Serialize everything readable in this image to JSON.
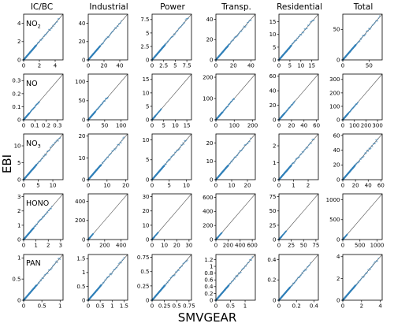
{
  "figure": {
    "xlabel": "SMVGEAR",
    "ylabel": "EBI",
    "columns": [
      "IC/BC",
      "Industrial",
      "Power",
      "Transp.",
      "Residential",
      "Total"
    ],
    "species": [
      {
        "name": "NO",
        "sub": "2"
      },
      {
        "name": "NO",
        "sub": ""
      },
      {
        "name": "NO",
        "sub": "3"
      },
      {
        "name": "HONO",
        "sub": ""
      },
      {
        "name": "PAN",
        "sub": ""
      }
    ],
    "colors": {
      "points": "#2f7fb8",
      "line": "#555555",
      "axes": "#000000"
    }
  },
  "chart_data": [
    {
      "type": "scatter",
      "row": "NO2",
      "column": "IC/BC",
      "xlim": [
        0,
        5
      ],
      "ylim": [
        0,
        5
      ],
      "xticks": [
        0,
        2,
        4
      ],
      "yticks": [
        0,
        2,
        4
      ],
      "xmax_data": 4.5,
      "ymax_data": 4.5,
      "identity_line": true
    },
    {
      "type": "scatter",
      "row": "NO2",
      "column": "Industrial",
      "xlim": [
        0,
        50
      ],
      "ylim": [
        0,
        50
      ],
      "xticks": [
        0,
        20,
        40
      ],
      "yticks": [
        0,
        20,
        40
      ],
      "xmax_data": 42,
      "ymax_data": 42,
      "identity_line": true
    },
    {
      "type": "scatter",
      "row": "NO2",
      "column": "Power",
      "xlim": [
        0,
        8.5
      ],
      "ylim": [
        0,
        8.5
      ],
      "xticks": [
        0.0,
        2.5,
        5.0,
        7.5
      ],
      "yticks": [
        0.0,
        2.5,
        5.0,
        7.5
      ],
      "xmax_data": 7.8,
      "ymax_data": 7.8,
      "identity_line": true
    },
    {
      "type": "scatter",
      "row": "NO2",
      "column": "Transp.",
      "xlim": [
        0,
        45
      ],
      "ylim": [
        0,
        45
      ],
      "xticks": [
        0,
        20,
        40
      ],
      "yticks": [
        0,
        20,
        40
      ],
      "xmax_data": 40,
      "ymax_data": 40,
      "identity_line": true
    },
    {
      "type": "scatter",
      "row": "NO2",
      "column": "Residential",
      "xlim": [
        0,
        18
      ],
      "ylim": [
        0,
        18
      ],
      "xticks": [
        0,
        5,
        10,
        15
      ],
      "yticks": [
        0,
        5,
        10,
        15
      ],
      "xmax_data": 16,
      "ymax_data": 16,
      "identity_line": true
    },
    {
      "type": "scatter",
      "row": "NO2",
      "column": "Total",
      "xlim": [
        0,
        75
      ],
      "ylim": [
        0,
        75
      ],
      "xticks": [
        0,
        50
      ],
      "yticks": [
        0,
        50
      ],
      "xmax_data": 70,
      "ymax_data": 70,
      "identity_line": true
    },
    {
      "type": "scatter",
      "row": "NO",
      "column": "IC/BC",
      "xlim": [
        0,
        0.35
      ],
      "ylim": [
        0,
        0.35
      ],
      "xticks": [
        0.0,
        0.1,
        0.2,
        0.3
      ],
      "yticks": [
        0.0,
        0.1,
        0.2,
        0.3
      ],
      "xmax_data": 0.14,
      "ymax_data": 0.14,
      "identity_line": true
    },
    {
      "type": "scatter",
      "row": "NO",
      "column": "Industrial",
      "xlim": [
        0,
        120
      ],
      "ylim": [
        0,
        120
      ],
      "xticks": [
        0,
        50,
        100
      ],
      "yticks": [
        0,
        50,
        100
      ],
      "xmax_data": 60,
      "ymax_data": 60,
      "identity_line": true
    },
    {
      "type": "scatter",
      "row": "NO",
      "column": "Power",
      "xlim": [
        0,
        17
      ],
      "ylim": [
        0,
        17
      ],
      "xticks": [
        0,
        5,
        10,
        15
      ],
      "yticks": [
        0,
        5,
        10,
        15
      ],
      "xmax_data": 4,
      "ymax_data": 4,
      "identity_line": true
    },
    {
      "type": "scatter",
      "row": "NO",
      "column": "Transp.",
      "xlim": [
        0,
        215
      ],
      "ylim": [
        0,
        215
      ],
      "xticks": [
        0,
        100,
        200
      ],
      "yticks": [
        0,
        100,
        200
      ],
      "xmax_data": 100,
      "ymax_data": 100,
      "identity_line": true
    },
    {
      "type": "scatter",
      "row": "NO",
      "column": "Residential",
      "xlim": [
        0,
        63
      ],
      "ylim": [
        0,
        63
      ],
      "xticks": [
        0,
        20,
        40,
        60
      ],
      "yticks": [
        0,
        20,
        40,
        60
      ],
      "xmax_data": 25,
      "ymax_data": 25,
      "identity_line": true
    },
    {
      "type": "scatter",
      "row": "NO",
      "column": "Total",
      "xlim": [
        0,
        340
      ],
      "ylim": [
        0,
        340
      ],
      "xticks": [
        0,
        100,
        200,
        300
      ],
      "yticks": [
        0,
        100,
        200,
        300
      ],
      "xmax_data": 130,
      "ymax_data": 130,
      "identity_line": true
    },
    {
      "type": "scatter",
      "row": "NO3",
      "column": "IC/BC",
      "xlim": [
        0,
        13.5
      ],
      "ylim": [
        0,
        13.5
      ],
      "xticks": [
        0,
        5,
        10
      ],
      "yticks": [
        0,
        5,
        10
      ],
      "xmax_data": 12.5,
      "ymax_data": 12.5,
      "identity_line": true
    },
    {
      "type": "scatter",
      "row": "NO3",
      "column": "Industrial",
      "xlim": [
        0,
        21
      ],
      "ylim": [
        0,
        21
      ],
      "xticks": [
        0,
        10,
        20
      ],
      "yticks": [
        0,
        10,
        20
      ],
      "xmax_data": 19,
      "ymax_data": 19,
      "identity_line": true
    },
    {
      "type": "scatter",
      "row": "NO3",
      "column": "Power",
      "xlim": [
        0,
        11.5
      ],
      "ylim": [
        0,
        11.5
      ],
      "xticks": [
        0,
        5,
        10
      ],
      "yticks": [
        0,
        5,
        10
      ],
      "xmax_data": 10,
      "ymax_data": 10,
      "identity_line": true
    },
    {
      "type": "scatter",
      "row": "NO3",
      "column": "Transp.",
      "xlim": [
        0,
        25
      ],
      "ylim": [
        0,
        25
      ],
      "xticks": [
        0,
        10,
        20
      ],
      "yticks": [
        0,
        10,
        20
      ],
      "xmax_data": 22,
      "ymax_data": 22,
      "identity_line": true
    },
    {
      "type": "scatter",
      "row": "NO3",
      "column": "Residential",
      "xlim": [
        0,
        2.7
      ],
      "ylim": [
        0,
        2.7
      ],
      "xticks": [
        0,
        1,
        2
      ],
      "yticks": [
        0,
        1,
        2
      ],
      "xmax_data": 2.4,
      "ymax_data": 2.4,
      "identity_line": true
    },
    {
      "type": "scatter",
      "row": "NO3",
      "column": "Total",
      "xlim": [
        0,
        62
      ],
      "ylim": [
        0,
        62
      ],
      "xticks": [
        0,
        20,
        40,
        60
      ],
      "yticks": [
        0,
        20,
        40,
        60
      ],
      "xmax_data": 55,
      "ymax_data": 55,
      "identity_line": true
    },
    {
      "type": "scatter",
      "row": "HONO",
      "column": "IC/BC",
      "xlim": [
        0,
        3.2
      ],
      "ylim": [
        0,
        3.2
      ],
      "xticks": [
        0,
        1,
        2,
        3
      ],
      "yticks": [
        0,
        1,
        2,
        3
      ],
      "xmax_data": 2.3,
      "ymax_data": 2.3,
      "identity_line": true
    },
    {
      "type": "scatter",
      "row": "HONO",
      "column": "Industrial",
      "xlim": [
        0,
        480
      ],
      "ylim": [
        0,
        480
      ],
      "xticks": [
        0,
        200,
        400
      ],
      "yticks": [
        0,
        200,
        400
      ],
      "xmax_data": 60,
      "ymax_data": 60,
      "identity_line": true
    },
    {
      "type": "scatter",
      "row": "HONO",
      "column": "Power",
      "xlim": [
        0,
        32
      ],
      "ylim": [
        0,
        32
      ],
      "xticks": [
        0,
        10,
        20,
        30
      ],
      "yticks": [
        0,
        10,
        20,
        30
      ],
      "xmax_data": 5,
      "ymax_data": 5,
      "identity_line": true
    },
    {
      "type": "scatter",
      "row": "HONO",
      "column": "Transp.",
      "xlim": [
        0,
        650
      ],
      "ylim": [
        0,
        650
      ],
      "xticks": [
        0,
        200,
        400,
        600
      ],
      "yticks": [
        0,
        200,
        400,
        600
      ],
      "xmax_data": 100,
      "ymax_data": 100,
      "identity_line": true
    },
    {
      "type": "scatter",
      "row": "HONO",
      "column": "Residential",
      "xlim": [
        0,
        80
      ],
      "ylim": [
        0,
        80
      ],
      "xticks": [
        0,
        25,
        50,
        75
      ],
      "yticks": [
        0,
        25,
        50,
        75
      ],
      "xmax_data": 15,
      "ymax_data": 15,
      "identity_line": true
    },
    {
      "type": "scatter",
      "row": "HONO",
      "column": "Total",
      "xlim": [
        0,
        1150
      ],
      "ylim": [
        0,
        1150
      ],
      "xticks": [
        0,
        500,
        1000
      ],
      "yticks": [
        0,
        500,
        1000
      ],
      "xmax_data": 130,
      "ymax_data": 130,
      "identity_line": true
    },
    {
      "type": "scatter",
      "row": "PAN",
      "column": "IC/BC",
      "xlim": [
        0,
        1.08
      ],
      "ylim": [
        0,
        1.08
      ],
      "xticks": [
        0.0,
        0.5,
        1.0
      ],
      "yticks": [
        0.0,
        0.5,
        1.0
      ],
      "xmax_data": 1.0,
      "ymax_data": 1.0,
      "identity_line": true
    },
    {
      "type": "scatter",
      "row": "PAN",
      "column": "Industrial",
      "xlim": [
        0,
        1.65
      ],
      "ylim": [
        0,
        1.65
      ],
      "xticks": [
        0.0,
        0.5,
        1.0,
        1.5
      ],
      "yticks": [
        0.0,
        0.5,
        1.0,
        1.5
      ],
      "xmax_data": 1.5,
      "ymax_data": 1.5,
      "identity_line": true
    },
    {
      "type": "scatter",
      "row": "PAN",
      "column": "Power",
      "xlim": [
        0,
        0.8
      ],
      "ylim": [
        0,
        0.8
      ],
      "xticks": [
        0.0,
        0.25,
        0.5,
        0.75
      ],
      "yticks": [
        0.0,
        0.25,
        0.5,
        0.75
      ],
      "xmax_data": 0.72,
      "ymax_data": 0.72,
      "identity_line": true
    },
    {
      "type": "scatter",
      "row": "PAN",
      "column": "Transp.",
      "xlim": [
        0,
        1.35
      ],
      "ylim": [
        0,
        1.35
      ],
      "xticks": [
        0.0,
        0.5,
        1.0
      ],
      "yticks": [
        0.0,
        0.2,
        0.4,
        0.6,
        0.8,
        1.0,
        1.2
      ],
      "xmax_data": 1.25,
      "ymax_data": 1.25,
      "identity_line": true
    },
    {
      "type": "scatter",
      "row": "PAN",
      "column": "Residential",
      "xlim": [
        0,
        0.45
      ],
      "ylim": [
        0,
        0.45
      ],
      "xticks": [
        0.0,
        0.2,
        0.4
      ],
      "yticks": [
        0.0,
        0.2,
        0.4
      ],
      "xmax_data": 0.36,
      "ymax_data": 0.36,
      "identity_line": true
    },
    {
      "type": "scatter",
      "row": "PAN",
      "column": "Total",
      "xlim": [
        0,
        4.2
      ],
      "ylim": [
        0,
        4.2
      ],
      "xticks": [
        0,
        2,
        4
      ],
      "yticks": [
        0,
        2,
        4
      ],
      "xmax_data": 3.8,
      "ymax_data": 3.8,
      "identity_line": true
    }
  ]
}
